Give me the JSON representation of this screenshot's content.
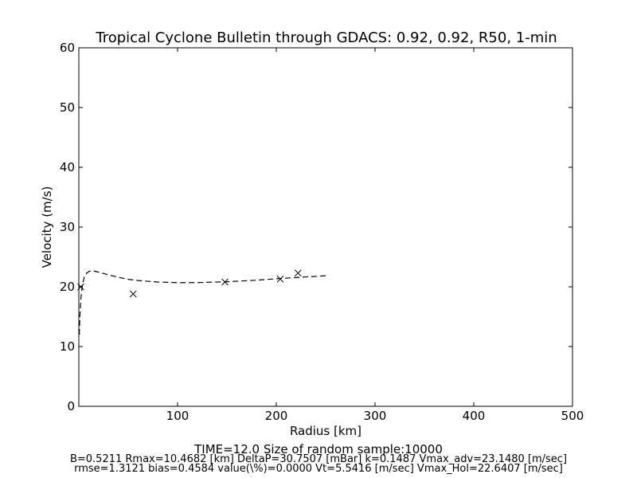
{
  "chart_data": {
    "type": "scatter",
    "title": "Tropical Cyclone Bulletin through GDACS: 0.92, 0.92, R50, 1-min",
    "xlabel": "Radius [km]",
    "ylabel": "Velocity (m/s)",
    "xlim": [
      0,
      500
    ],
    "ylim": [
      0,
      60
    ],
    "xticks": [
      100,
      200,
      300,
      400,
      500
    ],
    "xtick_labels": [
      "100",
      "200",
      "300",
      "400",
      "500"
    ],
    "yticks": [
      0,
      10,
      20,
      30,
      40,
      50,
      60
    ],
    "ytick_labels": [
      "0",
      "10",
      "20",
      "30",
      "40",
      "50",
      "60"
    ],
    "grid": false,
    "series": [
      {
        "style": "dashed-line",
        "color": "#000000",
        "x": [
          0.5,
          1,
          2,
          3,
          4,
          5,
          6,
          8,
          10,
          12,
          15,
          20,
          30,
          40,
          50,
          60,
          80,
          100,
          120,
          150,
          180,
          200,
          220,
          250
        ],
        "y": [
          12.0,
          15.0,
          17.8,
          19.5,
          20.6,
          21.3,
          21.8,
          22.3,
          22.55,
          22.65,
          22.65,
          22.45,
          22.0,
          21.6,
          21.25,
          21.05,
          20.8,
          20.7,
          20.7,
          20.85,
          21.1,
          21.35,
          21.55,
          21.85
        ]
      },
      {
        "style": "x-markers",
        "color": "#000000",
        "x": [
          2,
          55,
          148,
          204,
          222
        ],
        "y": [
          20.0,
          18.8,
          20.8,
          21.3,
          22.3
        ]
      }
    ]
  },
  "footer": {
    "line1": "TIME=12.0     Size of random sample:10000",
    "line2": "B=0.5211 Rmax=10.4682 [km]  DeltaP=30.7507 [mBar] k=0.1487 Vmax_adv=23.1480 [m/sec]",
    "line3": "rmse=1.3121 bias=0.4584 value(\\%)=0.0000 Vt=5.5416 [m/sec] Vmax_Hol=22.6407 [m/sec]"
  }
}
